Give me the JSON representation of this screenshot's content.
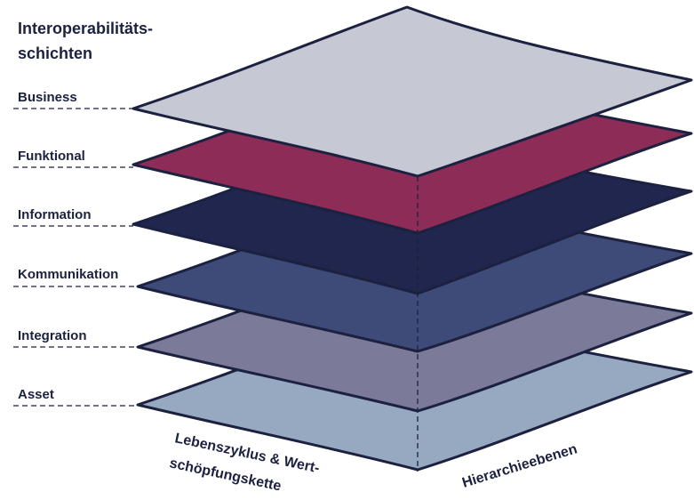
{
  "title": [
    "Interoperabilitäts-",
    "schichten"
  ],
  "layers": [
    "Business",
    "Funktional",
    "Information",
    "Kommunikation",
    "Integration",
    "Asset"
  ],
  "axes": {
    "lifecycle": [
      "Lebenszyklus & Wert-",
      "schöpfungskette"
    ],
    "hierarchy": "Hierarchieebenen"
  }
}
